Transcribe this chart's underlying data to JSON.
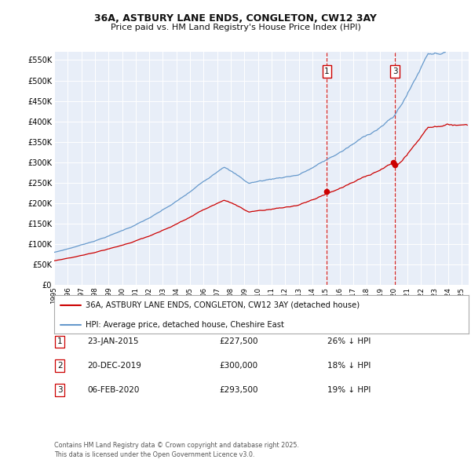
{
  "title_line1": "36A, ASTBURY LANE ENDS, CONGLETON, CW12 3AY",
  "title_line2": "Price paid vs. HM Land Registry's House Price Index (HPI)",
  "background_color": "#ffffff",
  "plot_bg_color": "#e8eef8",
  "grid_color": "#ffffff",
  "red_color": "#cc0000",
  "blue_color": "#6699cc",
  "ylim": [
    0,
    570000
  ],
  "yticks": [
    0,
    50000,
    100000,
    150000,
    200000,
    250000,
    300000,
    350000,
    400000,
    450000,
    500000,
    550000
  ],
  "ytick_labels": [
    "£0",
    "£50K",
    "£100K",
    "£150K",
    "£200K",
    "£250K",
    "£300K",
    "£350K",
    "£400K",
    "£450K",
    "£500K",
    "£550K"
  ],
  "price1": 227500,
  "price2": 300000,
  "price3": 293500,
  "t1": 2015.07,
  "t2": 2019.97,
  "t3": 2020.09,
  "vline_dates": [
    2015.07,
    2020.09
  ],
  "vline_labels": [
    "1",
    "3"
  ],
  "table_rows": [
    {
      "num": "1",
      "date": "23-JAN-2015",
      "price": "£227,500",
      "hpi": "26% ↓ HPI"
    },
    {
      "num": "2",
      "date": "20-DEC-2019",
      "price": "£300,000",
      "hpi": "18% ↓ HPI"
    },
    {
      "num": "3",
      "date": "06-FEB-2020",
      "price": "£293,500",
      "hpi": "19% ↓ HPI"
    }
  ],
  "legend_entries": [
    "36A, ASTBURY LANE ENDS, CONGLETON, CW12 3AY (detached house)",
    "HPI: Average price, detached house, Cheshire East"
  ],
  "footer": "Contains HM Land Registry data © Crown copyright and database right 2025.\nThis data is licensed under the Open Government Licence v3.0."
}
